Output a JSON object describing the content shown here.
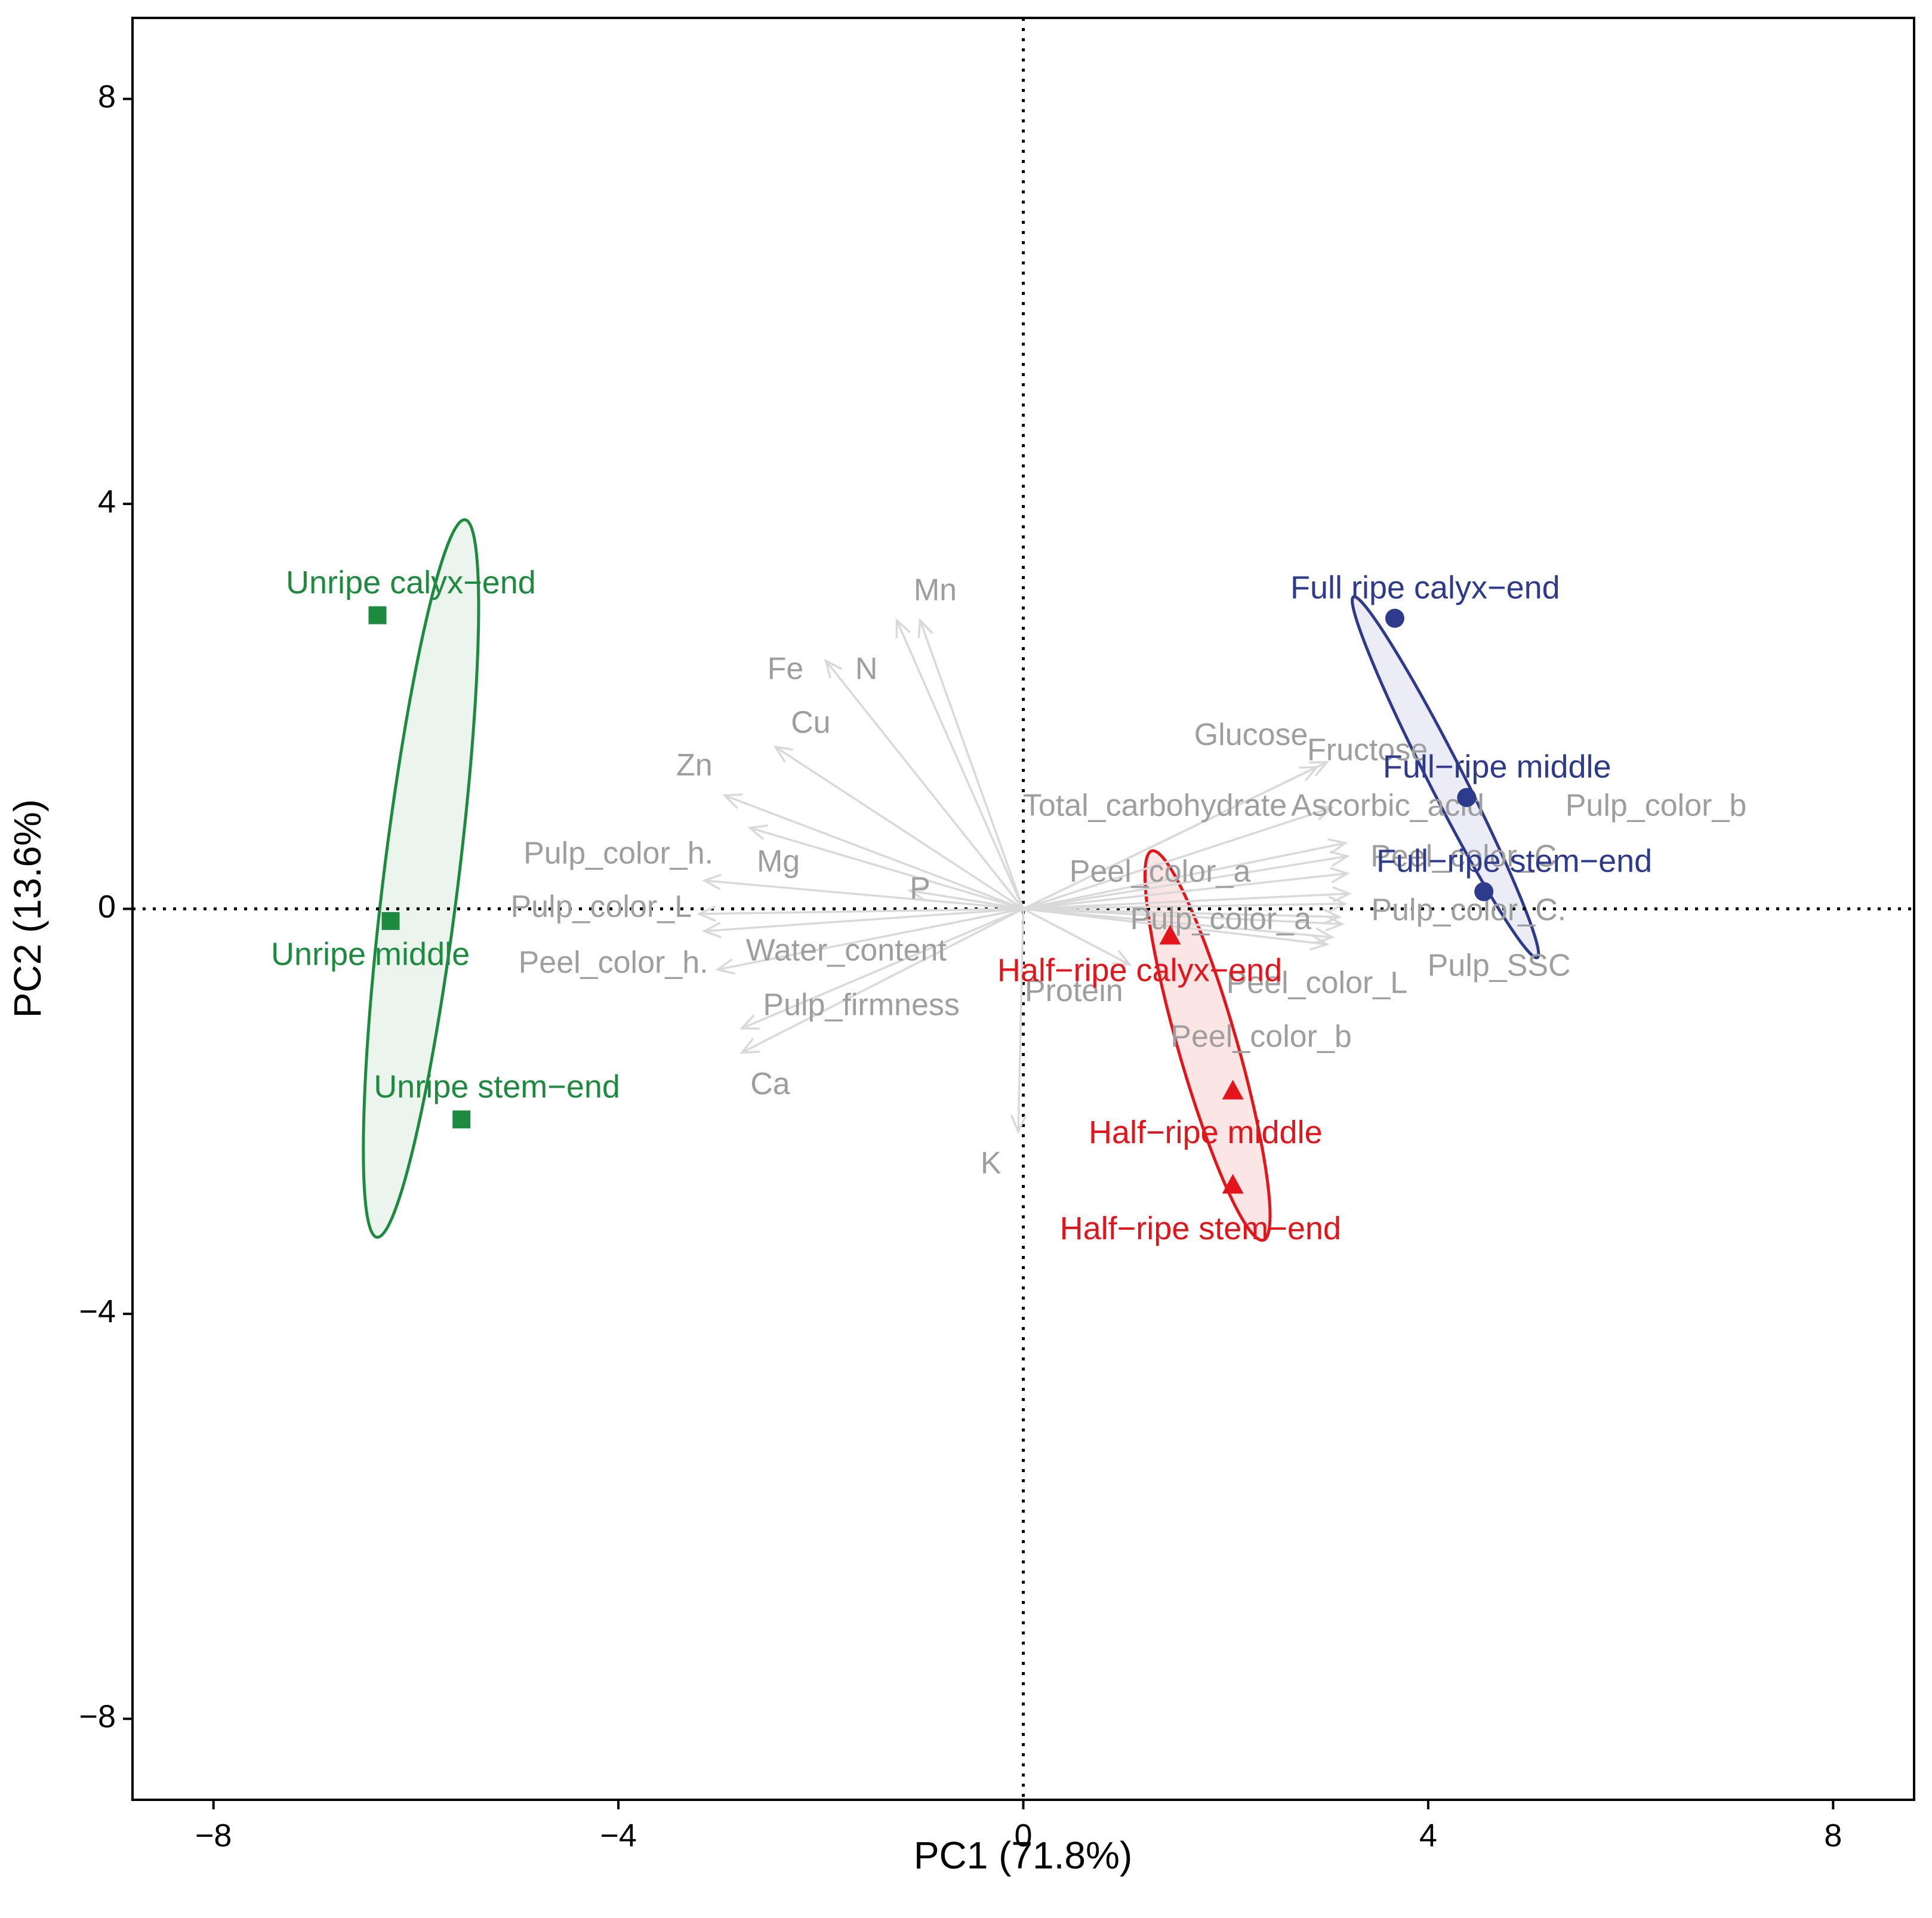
{
  "chart_data": {
    "type": "scatter",
    "subtype": "pca-biplot",
    "xlabel": "PC1 (71.8%)",
    "ylabel": "PC2 (13.6%)",
    "xlim": [
      -8.8,
      8.8
    ],
    "ylim": [
      -8.8,
      8.8
    ],
    "xticks": [
      -8,
      -4,
      0,
      4,
      8
    ],
    "yticks": [
      -8,
      -4,
      0,
      4,
      8
    ],
    "xtick_labels": [
      "−8",
      "−4",
      "0",
      "4",
      "8"
    ],
    "ytick_labels": [
      "−8",
      "−4",
      "0",
      "4",
      "8"
    ],
    "reference_lines": {
      "x": 0,
      "y": 0,
      "style": "dotted"
    },
    "groups": [
      {
        "name": "Unripe",
        "color": "#1e8a3f",
        "fill": "#e8f3ea",
        "marker": "square",
        "ellipse": {
          "cx": -5.95,
          "cy": 0.3,
          "rx": 3.57,
          "ry": 0.37,
          "angle": 83
        },
        "points": [
          {
            "label": "Unripe calyx−end",
            "x": -6.38,
            "y": 2.9,
            "lx": -6.05,
            "ly": 3.2
          },
          {
            "label": "Unripe middle",
            "x": -6.25,
            "y": -0.12,
            "lx": -6.45,
            "ly": -0.47
          },
          {
            "label": "Unripe stem−end",
            "x": -5.55,
            "y": -2.08,
            "lx": -5.2,
            "ly": -1.78
          }
        ]
      },
      {
        "name": "Half-ripe",
        "color": "#e3151b",
        "fill": "#fbe1e1",
        "marker": "triangle",
        "ellipse": {
          "cx": 1.82,
          "cy": -1.35,
          "rx": 2.0,
          "ry": 0.29,
          "angle": -74
        },
        "points": [
          {
            "label": "Half−ripe calyx−end",
            "x": 1.45,
            "y": -0.27,
            "lx": 1.15,
            "ly": -0.63
          },
          {
            "label": "Half−ripe middle",
            "x": 2.07,
            "y": -1.8,
            "lx": 1.8,
            "ly": -2.23
          },
          {
            "label": "Half−ripe stem−end",
            "x": 2.07,
            "y": -2.73,
            "lx": 1.75,
            "ly": -3.18
          }
        ]
      },
      {
        "name": "Full ripe",
        "color": "#2e3a8c",
        "fill": "#e8e9f4",
        "marker": "circle",
        "ellipse": {
          "cx": 4.17,
          "cy": 1.3,
          "rx": 2.0,
          "ry": 0.17,
          "angle": -63
        },
        "points": [
          {
            "label": "Full ripe calyx−end",
            "x": 3.67,
            "y": 2.87,
            "lx": 3.97,
            "ly": 3.15
          },
          {
            "label": "Full−ripe middle",
            "x": 4.38,
            "y": 1.1,
            "lx": 4.68,
            "ly": 1.38
          },
          {
            "label": "Full−ripe stem−end",
            "x": 4.55,
            "y": 0.17,
            "lx": 4.85,
            "ly": 0.45
          }
        ]
      }
    ],
    "variables": [
      {
        "label": "Mn",
        "x": -1.25,
        "y": 2.85,
        "lx": -0.87,
        "ly": 3.13
      },
      {
        "label": "N",
        "x": -1.02,
        "y": 2.85,
        "lx": -1.55,
        "ly": 2.35
      },
      {
        "label": "Fe",
        "x": -1.95,
        "y": 2.45,
        "lx": -2.35,
        "ly": 2.35
      },
      {
        "label": "Cu",
        "x": -2.45,
        "y": 1.6,
        "lx": -2.1,
        "ly": 1.82
      },
      {
        "label": "Zn",
        "x": -2.95,
        "y": 1.12,
        "lx": -3.25,
        "ly": 1.4
      },
      {
        "label": "Pulp_color_h.",
        "x": -3.15,
        "y": 0.28,
        "lx": -4.0,
        "ly": 0.53
      },
      {
        "label": "Mg",
        "x": -2.7,
        "y": 0.8,
        "lx": -2.42,
        "ly": 0.45
      },
      {
        "label": "P",
        "x": -1.12,
        "y": 0.18,
        "lx": -1.02,
        "ly": 0.18
      },
      {
        "label": "Pulp_color_L",
        "x": -3.2,
        "y": -0.05,
        "lx": -4.17,
        "ly": 0.0
      },
      {
        "label": "Peel_color_h.",
        "x": -3.15,
        "y": -0.22,
        "lx": -4.05,
        "ly": -0.55
      },
      {
        "label": "Water_content",
        "x": -3.02,
        "y": -0.6,
        "lx": -1.75,
        "ly": -0.43
      },
      {
        "label": "Pulp_firmness",
        "x": -2.78,
        "y": -1.18,
        "lx": -1.6,
        "ly": -0.97
      },
      {
        "label": "Ca",
        "x": -2.78,
        "y": -1.42,
        "lx": -2.5,
        "ly": -1.75
      },
      {
        "label": "K",
        "x": -0.05,
        "y": -2.2,
        "lx": -0.32,
        "ly": -2.53
      },
      {
        "label": "Protein",
        "x": 1.05,
        "y": -0.55,
        "lx": 0.5,
        "ly": -0.83
      },
      {
        "label": "Glucose",
        "x": 2.9,
        "y": 1.4,
        "lx": 2.25,
        "ly": 1.7
      },
      {
        "label": "Fructose",
        "x": 3.0,
        "y": 1.45,
        "lx": 3.4,
        "ly": 1.55
      },
      {
        "label": "Total_carbohydrate",
        "x": 3.05,
        "y": 1.0,
        "lx": 1.3,
        "ly": 1.0
      },
      {
        "label": "Ascorbic_acid",
        "x": 3.18,
        "y": 0.65,
        "lx": 3.6,
        "ly": 1.0
      },
      {
        "label": "Pulp_color_b",
        "x": 3.2,
        "y": 0.52,
        "lx": 6.25,
        "ly": 1.0
      },
      {
        "label": "Peel_color_a",
        "x": 3.2,
        "y": 0.35,
        "lx": 1.35,
        "ly": 0.35
      },
      {
        "label": "Peel_color_C",
        "x": 3.22,
        "y": 0.15,
        "lx": 4.35,
        "ly": 0.5
      },
      {
        "label": "Pulp_color_C.",
        "x": 3.18,
        "y": 0.05,
        "lx": 4.4,
        "ly": -0.03
      },
      {
        "label": "Pulp_color_a",
        "x": 3.12,
        "y": -0.08,
        "lx": 1.95,
        "ly": -0.12
      },
      {
        "label": "Pulp_SSC",
        "x": 3.15,
        "y": -0.15,
        "lx": 4.7,
        "ly": -0.58
      },
      {
        "label": "Peel_color_L",
        "x": 3.05,
        "y": -0.28,
        "lx": 2.9,
        "ly": -0.75
      },
      {
        "label": "Peel_color_b",
        "x": 3.0,
        "y": -0.35,
        "lx": 2.35,
        "ly": -1.28
      }
    ]
  }
}
